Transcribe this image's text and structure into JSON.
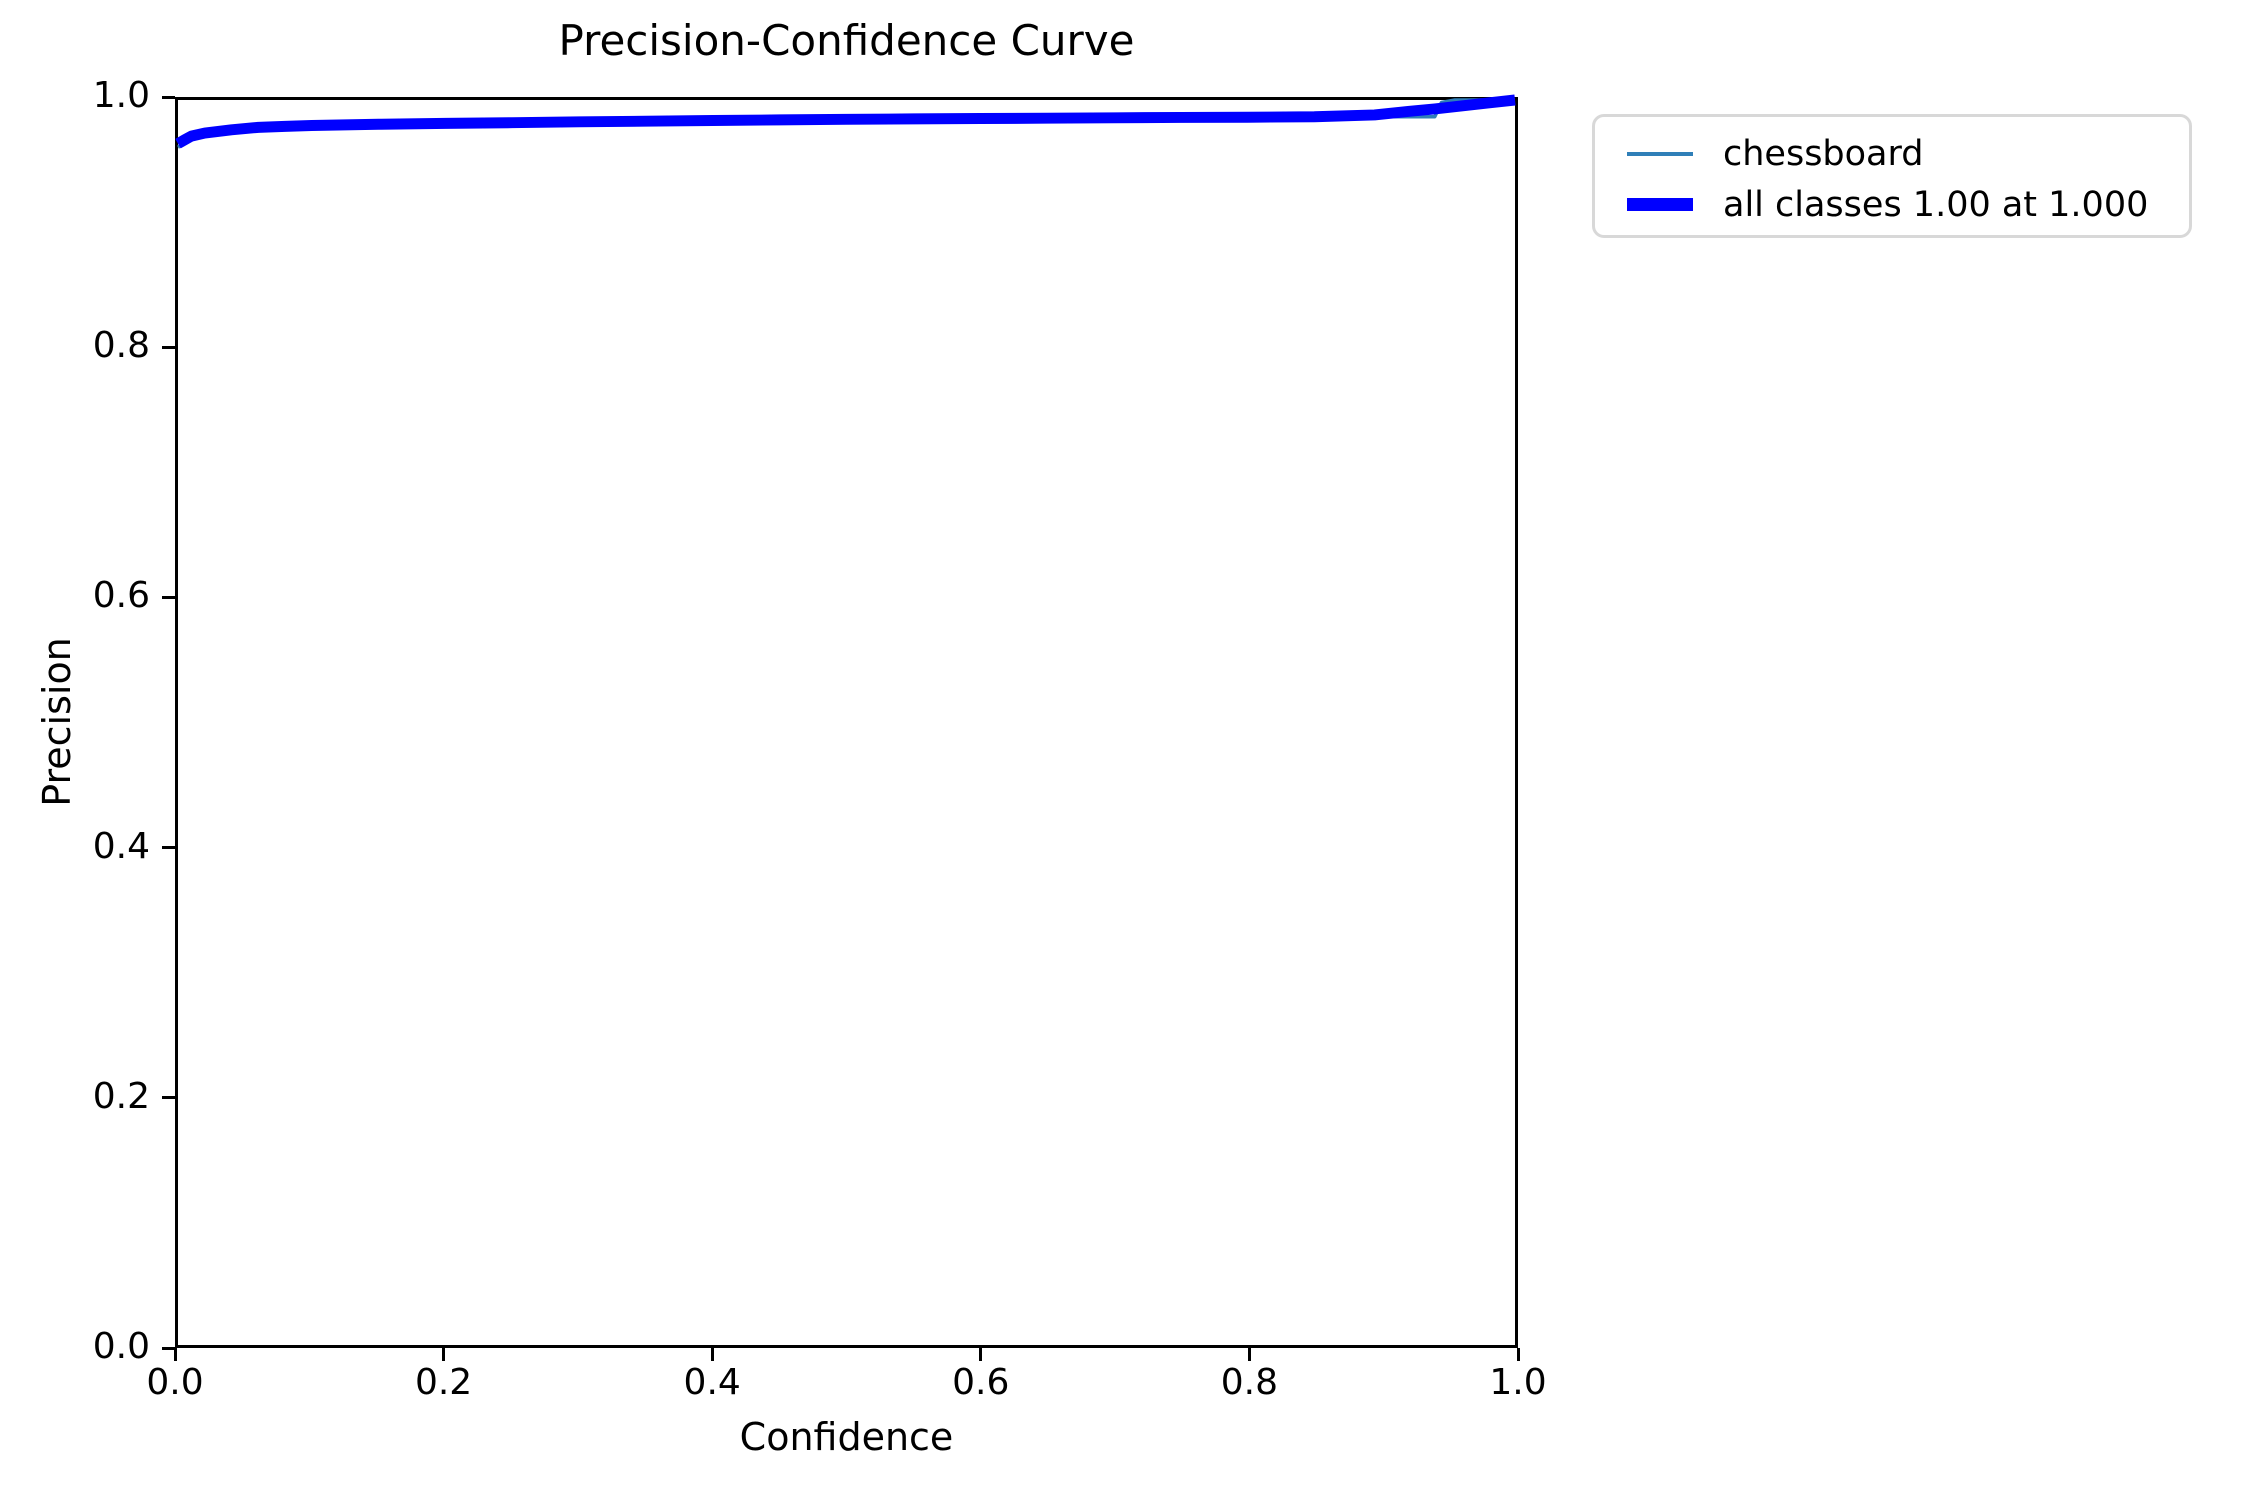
{
  "title": "Precision-Confidence Curve",
  "axes": {
    "xlabel": "Confidence",
    "ylabel": "Precision"
  },
  "legend": {
    "items": [
      {
        "label": "chessboard",
        "color": "#2f7fb8",
        "thickness": "thin"
      },
      {
        "label": "all classes 1.00 at 1.000",
        "color": "#0000ff",
        "thickness": "thick"
      }
    ]
  },
  "chart_data": {
    "type": "line",
    "title": "Precision-Confidence Curve",
    "xlabel": "Confidence",
    "ylabel": "Precision",
    "xlim": [
      0.0,
      1.0
    ],
    "ylim": [
      0.0,
      1.0
    ],
    "x_ticks": [
      "0.0",
      "0.2",
      "0.4",
      "0.6",
      "0.8",
      "1.0"
    ],
    "y_ticks": [
      "0.0",
      "0.2",
      "0.4",
      "0.6",
      "0.8",
      "1.0"
    ],
    "grid": false,
    "legend_position": "outside-upper-right",
    "series": [
      {
        "name": "chessboard",
        "color": "#2f7fb8",
        "line_width": 3.5,
        "points": [
          [
            0.0,
            0.962
          ],
          [
            0.005,
            0.9655
          ],
          [
            0.01,
            0.9695
          ],
          [
            0.02,
            0.973
          ],
          [
            0.04,
            0.976
          ],
          [
            0.06,
            0.978
          ],
          [
            0.08,
            0.9788
          ],
          [
            0.1,
            0.9795
          ],
          [
            0.15,
            0.9805
          ],
          [
            0.2,
            0.9812
          ],
          [
            0.25,
            0.9818
          ],
          [
            0.3,
            0.9825
          ],
          [
            0.35,
            0.983
          ],
          [
            0.4,
            0.9835
          ],
          [
            0.45,
            0.984
          ],
          [
            0.5,
            0.9845
          ],
          [
            0.55,
            0.9848
          ],
          [
            0.6,
            0.9851
          ],
          [
            0.65,
            0.9854
          ],
          [
            0.7,
            0.9857
          ],
          [
            0.75,
            0.986
          ],
          [
            0.8,
            0.9862
          ],
          [
            0.85,
            0.9866
          ],
          [
            0.9,
            0.9866
          ],
          [
            0.94,
            0.9866
          ],
          [
            0.945,
            0.998
          ],
          [
            0.955,
            1.0
          ],
          [
            1.0,
            1.0
          ]
        ]
      },
      {
        "name": "all classes 1.00 at 1.000",
        "color": "#0000ff",
        "line_width": 11,
        "points": [
          [
            0.0,
            0.965
          ],
          [
            0.005,
            0.968
          ],
          [
            0.01,
            0.971
          ],
          [
            0.02,
            0.9735
          ],
          [
            0.04,
            0.976
          ],
          [
            0.06,
            0.978
          ],
          [
            0.08,
            0.9788
          ],
          [
            0.1,
            0.9795
          ],
          [
            0.15,
            0.9805
          ],
          [
            0.2,
            0.9812
          ],
          [
            0.25,
            0.9818
          ],
          [
            0.3,
            0.9825
          ],
          [
            0.35,
            0.983
          ],
          [
            0.4,
            0.9835
          ],
          [
            0.45,
            0.984
          ],
          [
            0.5,
            0.9845
          ],
          [
            0.55,
            0.9848
          ],
          [
            0.6,
            0.9851
          ],
          [
            0.65,
            0.9854
          ],
          [
            0.7,
            0.9857
          ],
          [
            0.75,
            0.986
          ],
          [
            0.8,
            0.9862
          ],
          [
            0.85,
            0.9866
          ],
          [
            0.895,
            0.988
          ],
          [
            0.92,
            0.9908
          ],
          [
            0.94,
            0.9928
          ],
          [
            0.96,
            0.9952
          ],
          [
            0.98,
            0.9976
          ],
          [
            1.0,
            1.0
          ]
        ]
      }
    ]
  }
}
